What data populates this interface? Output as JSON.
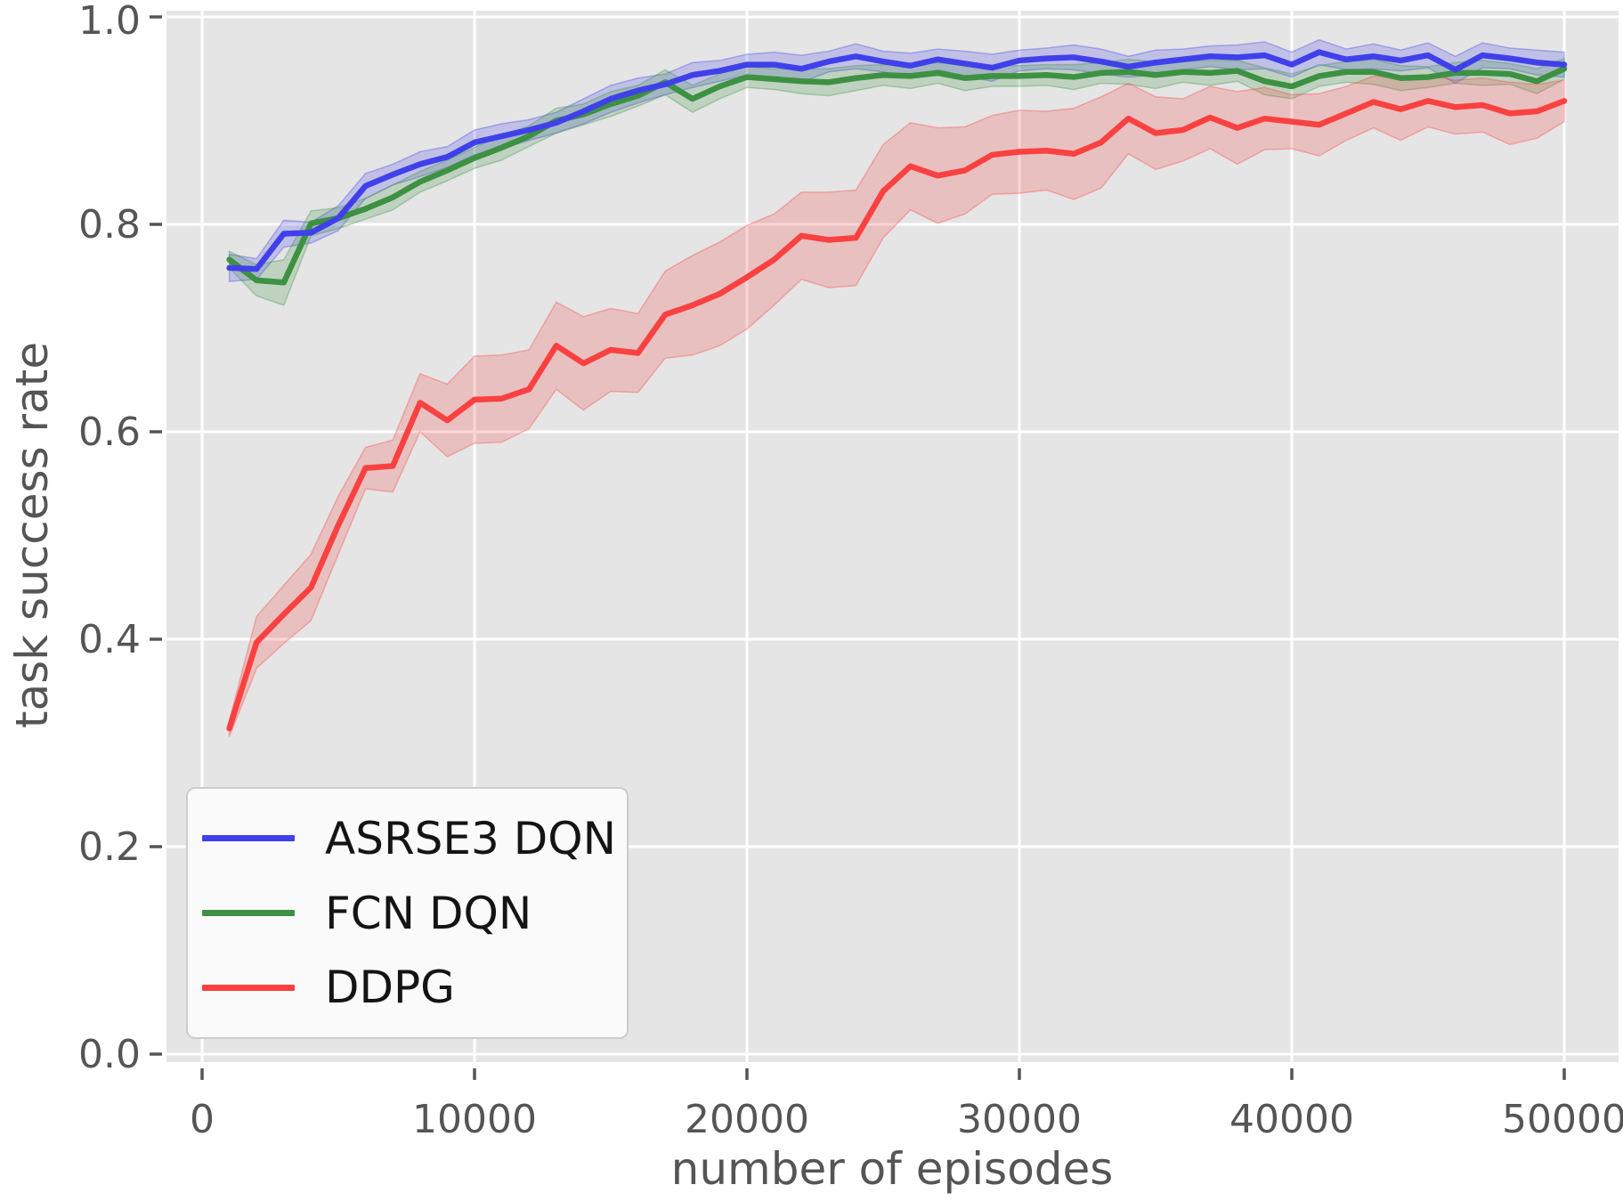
{
  "figure": {
    "panel_bg": "#e5e5e5",
    "grid_color": "#ffffff",
    "tick_color": "#555555",
    "label_color": "#555555",
    "legend_bg": "#fafafa",
    "legend_border": "#cccccc"
  },
  "chart_data": {
    "type": "line",
    "title": "",
    "xlabel": "number of episodes",
    "ylabel": "task success rate",
    "legend_position": "lower left",
    "grid": true,
    "xlim": [
      -1300,
      51500
    ],
    "ylim": [
      0.0,
      1.005
    ],
    "x_ticks": [
      0,
      10000,
      20000,
      30000,
      40000,
      50000
    ],
    "x_tick_labels": [
      "0",
      "10000",
      "20000",
      "30000",
      "40000",
      "50000"
    ],
    "y_ticks": [
      0.0,
      0.2,
      0.4,
      0.6,
      0.8,
      1.0
    ],
    "y_tick_labels": [
      "0.0",
      "0.2",
      "0.4",
      "0.6",
      "0.8",
      "1.0"
    ],
    "x": [
      1000,
      2000,
      3000,
      4000,
      5000,
      6000,
      7000,
      8000,
      9000,
      10000,
      11000,
      12000,
      13000,
      14000,
      15000,
      16000,
      17000,
      18000,
      19000,
      20000,
      21000,
      22000,
      23000,
      24000,
      25000,
      26000,
      27000,
      28000,
      29000,
      30000,
      31000,
      32000,
      33000,
      34000,
      35000,
      36000,
      37000,
      38000,
      39000,
      40000,
      41000,
      42000,
      43000,
      44000,
      45000,
      46000,
      47000,
      48000,
      49000,
      50000
    ],
    "series": [
      {
        "name": "ASRSE3 DQN",
        "color": "#4040eb",
        "values": [
          0.758,
          0.757,
          0.791,
          0.792,
          0.806,
          0.837,
          0.848,
          0.858,
          0.865,
          0.879,
          0.885,
          0.891,
          0.898,
          0.909,
          0.921,
          0.929,
          0.935,
          0.944,
          0.948,
          0.954,
          0.954,
          0.95,
          0.957,
          0.962,
          0.957,
          0.953,
          0.959,
          0.955,
          0.951,
          0.958,
          0.96,
          0.961,
          0.957,
          0.952,
          0.956,
          0.959,
          0.962,
          0.961,
          0.963,
          0.954,
          0.966,
          0.959,
          0.962,
          0.958,
          0.963,
          0.949,
          0.963,
          0.96,
          0.956,
          0.954
        ],
        "band": [
          0.013,
          0.01,
          0.013,
          0.01,
          0.012,
          0.012,
          0.01,
          0.012,
          0.01,
          0.012,
          0.012,
          0.01,
          0.01,
          0.012,
          0.013,
          0.012,
          0.01,
          0.012,
          0.01,
          0.01,
          0.012,
          0.013,
          0.01,
          0.012,
          0.01,
          0.012,
          0.01,
          0.012,
          0.013,
          0.01,
          0.01,
          0.012,
          0.012,
          0.01,
          0.012,
          0.01,
          0.01,
          0.012,
          0.013,
          0.012,
          0.012,
          0.01,
          0.012,
          0.01,
          0.012,
          0.013,
          0.012,
          0.01,
          0.012,
          0.012
        ]
      },
      {
        "name": "FCN DQN",
        "color": "#3d9142",
        "values": [
          0.766,
          0.746,
          0.744,
          0.801,
          0.806,
          0.815,
          0.826,
          0.841,
          0.852,
          0.864,
          0.874,
          0.885,
          0.9,
          0.906,
          0.916,
          0.924,
          0.937,
          0.921,
          0.933,
          0.942,
          0.94,
          0.938,
          0.937,
          0.941,
          0.944,
          0.943,
          0.946,
          0.941,
          0.943,
          0.943,
          0.944,
          0.942,
          0.946,
          0.947,
          0.944,
          0.947,
          0.946,
          0.948,
          0.938,
          0.933,
          0.943,
          0.947,
          0.947,
          0.941,
          0.942,
          0.946,
          0.946,
          0.945,
          0.938,
          0.95
        ],
        "band": [
          0.008,
          0.015,
          0.022,
          0.012,
          0.01,
          0.01,
          0.012,
          0.01,
          0.01,
          0.01,
          0.012,
          0.01,
          0.012,
          0.01,
          0.012,
          0.01,
          0.012,
          0.013,
          0.012,
          0.01,
          0.01,
          0.012,
          0.013,
          0.012,
          0.01,
          0.012,
          0.01,
          0.012,
          0.01,
          0.01,
          0.01,
          0.012,
          0.01,
          0.012,
          0.013,
          0.01,
          0.012,
          0.01,
          0.013,
          0.012,
          0.01,
          0.01,
          0.012,
          0.012,
          0.01,
          0.01,
          0.012,
          0.01,
          0.012,
          0.01
        ]
      },
      {
        "name": "DDPG",
        "color": "#fa4141",
        "values": [
          0.314,
          0.397,
          0.424,
          0.45,
          0.51,
          0.565,
          0.567,
          0.628,
          0.611,
          0.631,
          0.632,
          0.641,
          0.683,
          0.666,
          0.679,
          0.676,
          0.713,
          0.722,
          0.733,
          0.749,
          0.766,
          0.789,
          0.785,
          0.787,
          0.832,
          0.856,
          0.847,
          0.852,
          0.867,
          0.87,
          0.871,
          0.868,
          0.879,
          0.902,
          0.888,
          0.891,
          0.903,
          0.893,
          0.902,
          0.899,
          0.896,
          0.907,
          0.918,
          0.911,
          0.919,
          0.913,
          0.915,
          0.907,
          0.909,
          0.919
        ],
        "band": [
          0.008,
          0.025,
          0.028,
          0.032,
          0.028,
          0.02,
          0.025,
          0.028,
          0.035,
          0.042,
          0.042,
          0.038,
          0.042,
          0.045,
          0.04,
          0.038,
          0.042,
          0.048,
          0.05,
          0.05,
          0.044,
          0.042,
          0.046,
          0.046,
          0.045,
          0.042,
          0.046,
          0.042,
          0.038,
          0.04,
          0.038,
          0.044,
          0.044,
          0.034,
          0.035,
          0.03,
          0.03,
          0.035,
          0.03,
          0.026,
          0.03,
          0.026,
          0.025,
          0.03,
          0.025,
          0.026,
          0.026,
          0.03,
          0.026,
          0.02
        ]
      }
    ]
  }
}
